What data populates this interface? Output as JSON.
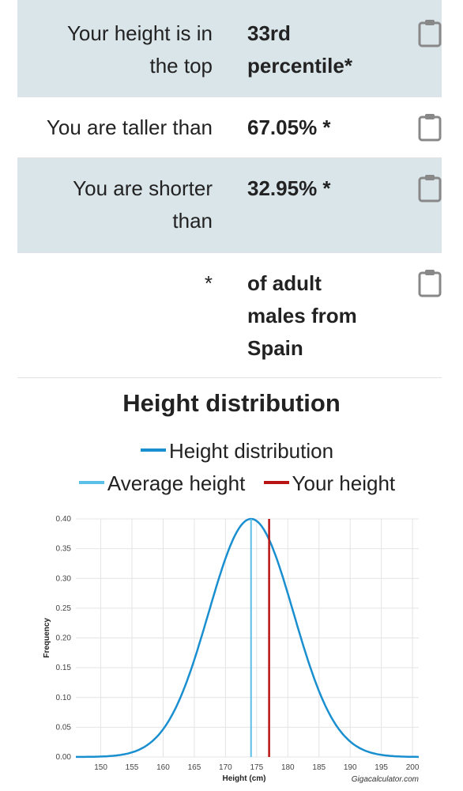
{
  "results": [
    {
      "label": "Your height is in the top",
      "value": "33rd percentile*"
    },
    {
      "label": "You are taller than",
      "value": "67.05% *"
    },
    {
      "label": "You are shorter than",
      "value": "32.95% *"
    },
    {
      "label": "*",
      "value": "of adult males from Spain"
    }
  ],
  "copy_icon": "clipboard-icon",
  "chart_data": {
    "type": "line",
    "title": "Height distribution",
    "xlabel": "Height (cm)",
    "ylabel": "Frequency",
    "xlim": [
      146,
      201
    ],
    "ylim": [
      0,
      0.4
    ],
    "x_ticks": [
      150,
      155,
      160,
      165,
      170,
      175,
      180,
      185,
      190,
      195,
      200
    ],
    "y_ticks": [
      0.0,
      0.05,
      0.1,
      0.15,
      0.2,
      0.25,
      0.3,
      0.35,
      0.4
    ],
    "grid": true,
    "legend_position": "top",
    "series": [
      {
        "name": "Height distribution",
        "color": "#1a8fd0",
        "kind": "curve",
        "mean": 174.1,
        "sd": 6.8,
        "peak": 0.4
      },
      {
        "name": "Average height",
        "color": "#5bc0e8",
        "kind": "vline",
        "x": 174.1
      },
      {
        "name": "Your height",
        "color": "#b81414",
        "kind": "vline",
        "x": 177.0
      }
    ],
    "credit": "Gigacalculator.com"
  }
}
